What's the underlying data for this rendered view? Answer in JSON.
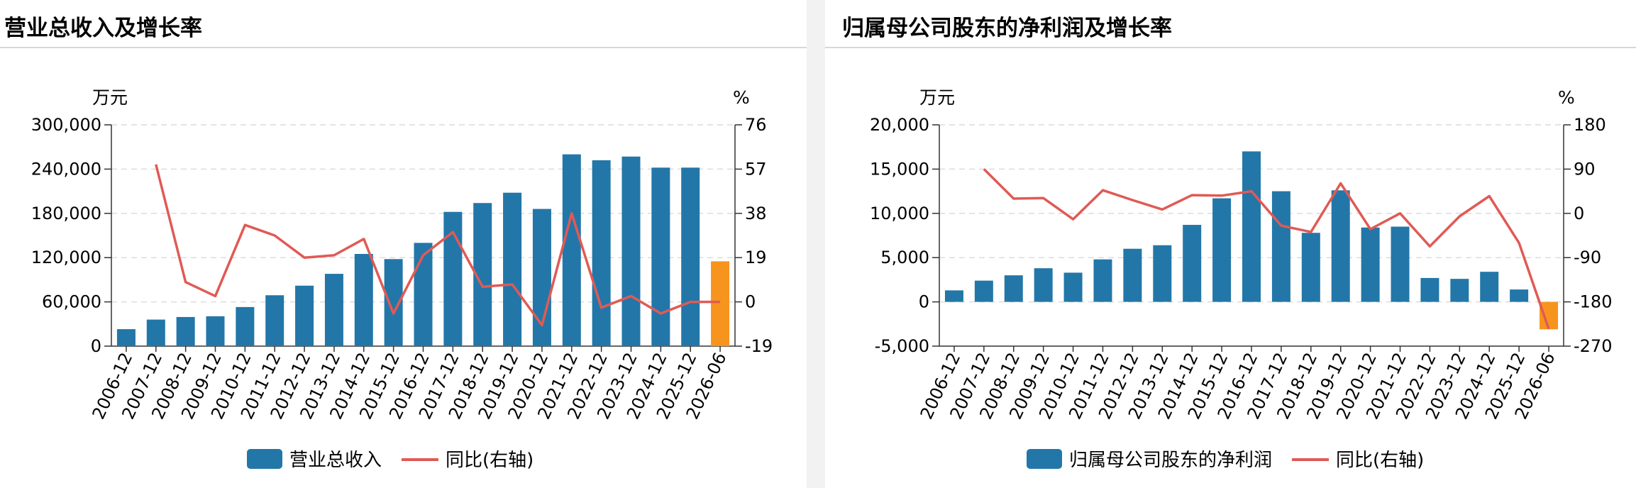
{
  "panels": [
    {
      "title": "营业总收入及增长率"
    },
    {
      "title": "归属母公司股东的净利润及增长率"
    }
  ],
  "colors": {
    "bar": "#2277a8",
    "bar_highlight": "#f7941d",
    "line": "#e05a55"
  },
  "chart_data": [
    {
      "type": "bar",
      "title": "营业总收入及增长率",
      "categories": [
        "2006-12",
        "2007-12",
        "2008-12",
        "2009-12",
        "2010-12",
        "2011-12",
        "2012-12",
        "2013-12",
        "2014-12",
        "2015-12",
        "2016-12",
        "2017-12",
        "2018-12",
        "2019-12",
        "2020-12",
        "2021-12",
        "2022-12",
        "2023-12",
        "2024-12",
        "2025-12",
        "2026-06"
      ],
      "ylabel": "万元",
      "y2label": "%",
      "ylim": [
        0,
        300000
      ],
      "yticks": [
        "300,000",
        "240,000",
        "180,000",
        "120,000",
        "60,000",
        "0"
      ],
      "y2lim": [
        -19,
        76
      ],
      "y2ticks": [
        "76",
        "57",
        "38",
        "19",
        "0",
        "-19"
      ],
      "grid": true,
      "legend_position": "bottom-center",
      "series": [
        {
          "name": "营业总收入",
          "type": "bar",
          "values": [
            23000,
            36000,
            39500,
            40500,
            53000,
            69000,
            82000,
            98000,
            125000,
            118000,
            140000,
            182000,
            194000,
            208000,
            186000,
            260000,
            252000,
            257000,
            242000,
            242000,
            115000
          ]
        },
        {
          "name": "同比(右轴)",
          "type": "line",
          "axis": "right",
          "values": [
            null,
            59,
            8.5,
            2.5,
            33,
            28.5,
            19,
            20,
            27,
            -5,
            20,
            30,
            6.5,
            7.5,
            -10,
            38,
            -2.5,
            2.5,
            -5,
            0,
            0
          ]
        }
      ]
    },
    {
      "type": "bar",
      "title": "归属母公司股东的净利润及增长率",
      "categories": [
        "2006-12",
        "2007-12",
        "2008-12",
        "2009-12",
        "2010-12",
        "2011-12",
        "2012-12",
        "2013-12",
        "2014-12",
        "2015-12",
        "2016-12",
        "2017-12",
        "2018-12",
        "2019-12",
        "2020-12",
        "2021-12",
        "2022-12",
        "2023-12",
        "2024-12",
        "2025-12",
        "2026-06"
      ],
      "ylabel": "万元",
      "y2label": "%",
      "ylim": [
        -5000,
        20000
      ],
      "yticks": [
        "20,000",
        "15,000",
        "10,000",
        "5,000",
        "0",
        "-5,000"
      ],
      "y2lim": [
        -270,
        180
      ],
      "y2ticks": [
        "180",
        "90",
        "0",
        "-90",
        "-180",
        "-270"
      ],
      "grid": true,
      "legend_position": "bottom-center",
      "series": [
        {
          "name": "归属母公司股东的净利润",
          "type": "bar",
          "values": [
            1300,
            2400,
            3000,
            3800,
            3300,
            4800,
            6000,
            6400,
            8700,
            11700,
            17000,
            12500,
            7800,
            12600,
            8400,
            8500,
            2700,
            2600,
            3400,
            1400,
            -3100
          ]
        },
        {
          "name": "同比(右轴)",
          "type": "line",
          "axis": "right",
          "values": [
            null,
            90,
            30,
            31,
            -12,
            47,
            27,
            8,
            37,
            36,
            45,
            -25,
            -38,
            61,
            -32,
            0,
            -67,
            -6,
            35,
            -60,
            -235
          ]
        }
      ]
    }
  ]
}
